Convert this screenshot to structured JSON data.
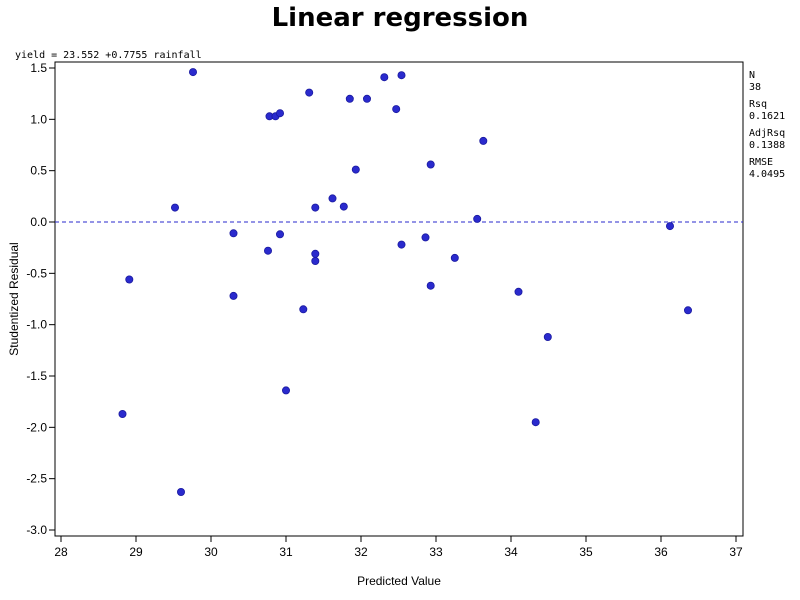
{
  "chart_data": {
    "type": "scatter",
    "title": "Linear regression",
    "equation": "yield = 23.552 +0.7755 rainfall",
    "xlabel": "Predicted Value",
    "ylabel": "Studentized Residual",
    "xlim": [
      28,
      37
    ],
    "ylim": [
      -3.0,
      1.5
    ],
    "x_ticks": [
      28,
      29,
      30,
      31,
      32,
      33,
      34,
      35,
      36,
      37
    ],
    "y_ticks": [
      1.5,
      1.0,
      0.5,
      0.0,
      -0.5,
      -1.0,
      -1.5,
      -2.0,
      -2.5,
      -3.0
    ],
    "y_tick_labels": [
      "1.5",
      "1.0",
      "0.5",
      "0.0",
      "-0.5",
      "-1.0",
      "-1.5",
      "-2.0",
      "-2.5",
      "-3.0"
    ],
    "reference_line": {
      "y": 0.0,
      "style": "dashed",
      "color": "#2a2acd"
    },
    "point_color": "#2a2acd",
    "grid": false,
    "stats": [
      {
        "label": "N",
        "value": "38"
      },
      {
        "label": "Rsq",
        "value": "0.1621"
      },
      {
        "label": "AdjRsq",
        "value": "0.1388"
      },
      {
        "label": "RMSE",
        "value": "4.0495"
      }
    ],
    "points": [
      {
        "x": 28.82,
        "y": -1.87
      },
      {
        "x": 28.91,
        "y": -0.56
      },
      {
        "x": 29.52,
        "y": 0.14
      },
      {
        "x": 29.6,
        "y": -2.63
      },
      {
        "x": 29.76,
        "y": 1.46
      },
      {
        "x": 30.3,
        "y": -0.11
      },
      {
        "x": 30.3,
        "y": -0.72
      },
      {
        "x": 30.76,
        "y": -0.28
      },
      {
        "x": 30.78,
        "y": 1.03
      },
      {
        "x": 30.86,
        "y": 1.03
      },
      {
        "x": 30.92,
        "y": 1.06
      },
      {
        "x": 30.92,
        "y": -0.12
      },
      {
        "x": 31.0,
        "y": -1.64
      },
      {
        "x": 31.23,
        "y": -0.85
      },
      {
        "x": 31.31,
        "y": 1.26
      },
      {
        "x": 31.39,
        "y": 0.14
      },
      {
        "x": 31.39,
        "y": -0.31
      },
      {
        "x": 31.39,
        "y": -0.38
      },
      {
        "x": 31.62,
        "y": 0.23
      },
      {
        "x": 31.77,
        "y": 0.15
      },
      {
        "x": 31.85,
        "y": 1.2
      },
      {
        "x": 31.93,
        "y": 0.51
      },
      {
        "x": 32.08,
        "y": 1.2
      },
      {
        "x": 32.31,
        "y": 1.41
      },
      {
        "x": 32.47,
        "y": 1.1
      },
      {
        "x": 32.54,
        "y": 1.43
      },
      {
        "x": 32.54,
        "y": -0.22
      },
      {
        "x": 32.86,
        "y": -0.15
      },
      {
        "x": 32.93,
        "y": 0.56
      },
      {
        "x": 32.93,
        "y": -0.62
      },
      {
        "x": 33.25,
        "y": -0.35
      },
      {
        "x": 33.55,
        "y": 0.03
      },
      {
        "x": 33.63,
        "y": 0.79
      },
      {
        "x": 34.1,
        "y": -0.68
      },
      {
        "x": 34.33,
        "y": -1.95
      },
      {
        "x": 34.49,
        "y": -1.12
      },
      {
        "x": 36.12,
        "y": -0.04
      },
      {
        "x": 36.36,
        "y": -0.86
      }
    ]
  }
}
